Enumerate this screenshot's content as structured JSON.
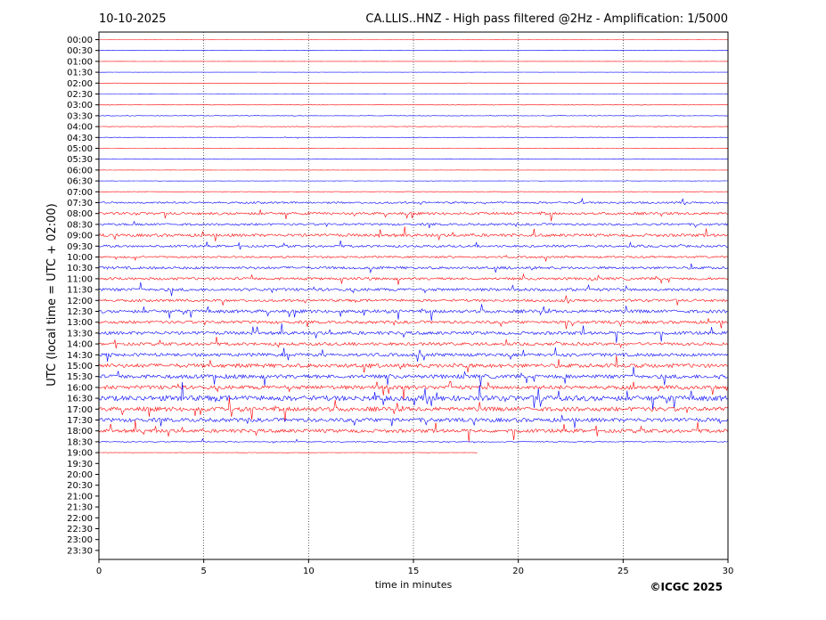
{
  "header": {
    "date": "10-10-2025",
    "station_title": "CA.LLIS..HNZ - High pass filtered @2Hz - Amplification: 1/5000"
  },
  "footer": {
    "copyright": "©ICGC 2025"
  },
  "colors": {
    "trace_odd": "#ff0000",
    "trace_even": "#0000ff",
    "frame": "#000000",
    "grid": "#000000"
  },
  "chart_data": {
    "type": "line",
    "title": "CA.LLIS..HNZ - High pass filtered @2Hz - Amplification: 1/5000",
    "xlabel": "time in minutes",
    "ylabel": "UTC (local time = UTC + 02:00)",
    "xlim": [
      0,
      30
    ],
    "x_ticks": [
      0,
      5,
      10,
      15,
      20,
      25,
      30
    ],
    "x_tick_labels": [
      "0",
      "5",
      "10",
      "15",
      "20",
      "25",
      "30"
    ],
    "vertical_grid": true,
    "rows": [
      "00:00",
      "00:30",
      "01:00",
      "01:30",
      "02:00",
      "02:30",
      "03:00",
      "03:30",
      "04:00",
      "04:30",
      "05:00",
      "05:30",
      "06:00",
      "06:30",
      "07:00",
      "07:30",
      "08:00",
      "08:30",
      "09:00",
      "09:30",
      "10:00",
      "10:30",
      "11:00",
      "11:30",
      "12:00",
      "12:30",
      "13:00",
      "13:30",
      "14:00",
      "14:30",
      "15:00",
      "15:30",
      "16:00",
      "16:30",
      "17:00",
      "17:30",
      "18:00",
      "18:30",
      "19:00",
      "19:30",
      "20:00",
      "20:30",
      "21:00",
      "21:30",
      "22:00",
      "22:30",
      "23:00",
      "23:30"
    ],
    "trace_end_minute": [
      30,
      30,
      30,
      30,
      30,
      30,
      30,
      30,
      30,
      30,
      30,
      30,
      30,
      30,
      30,
      30,
      30,
      30,
      30,
      30,
      30,
      30,
      30,
      30,
      30,
      30,
      30,
      30,
      30,
      30,
      30,
      30,
      30,
      30,
      30,
      30,
      30,
      30,
      18.1,
      0,
      0,
      0,
      0,
      0,
      0,
      0,
      0,
      0
    ],
    "activity_level": [
      0.02,
      0.02,
      0.02,
      0.02,
      0.02,
      0.02,
      0.06,
      0.08,
      0.08,
      0.07,
      0.04,
      0.03,
      0.04,
      0.05,
      0.12,
      0.3,
      0.4,
      0.35,
      0.45,
      0.35,
      0.3,
      0.4,
      0.4,
      0.45,
      0.4,
      0.5,
      0.45,
      0.5,
      0.45,
      0.5,
      0.6,
      0.6,
      0.6,
      0.8,
      0.65,
      0.6,
      0.55,
      0.15,
      0.05,
      0,
      0,
      0,
      0,
      0,
      0,
      0,
      0,
      0
    ]
  }
}
